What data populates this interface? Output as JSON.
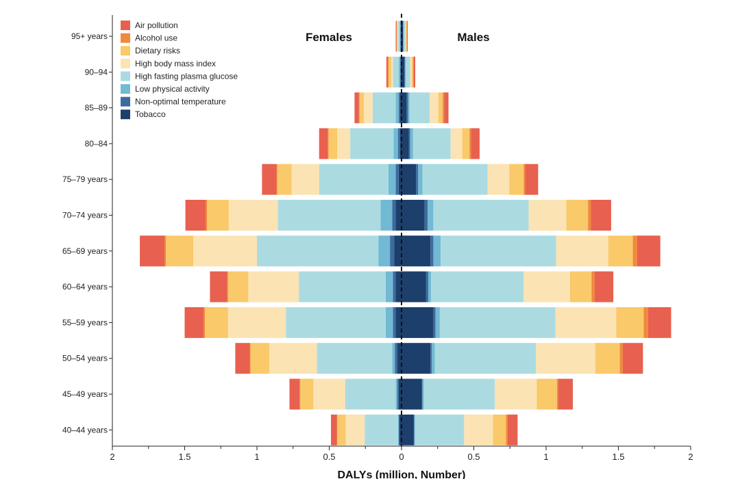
{
  "chart_data": {
    "type": "bar",
    "orientation": "horizontal-stacked-diverging",
    "title": "",
    "xlabel": "DALYs (million, Number)",
    "ylabel": "",
    "xlim": [
      -2,
      2
    ],
    "x_tick_values": [
      -2,
      -1.5,
      -1,
      -0.5,
      0,
      0.5,
      1,
      1.5,
      2
    ],
    "x_tick_labels": [
      "2",
      "1.5",
      "1",
      "0.5",
      "0",
      "0.5",
      "1",
      "1.5",
      "2"
    ],
    "panel_labels": {
      "left": "Females",
      "right": "Males"
    },
    "legend_position": "top-left",
    "categories": [
      "95+ years",
      "90–94",
      "85–89",
      "80–84",
      "75–79 years",
      "70–74 years",
      "65–69 years",
      "60–64 years",
      "55–59 years",
      "50–54 years",
      "45–49 years",
      "40–44 years"
    ],
    "series": [
      {
        "name": "Tobacco",
        "color": "#1d3f6b",
        "females": [
          0.005,
          0.005,
          0.01,
          0.01,
          0.02,
          0.04,
          0.05,
          0.04,
          0.04,
          0.03,
          0.02,
          0.015
        ],
        "males": [
          0.01,
          0.02,
          0.035,
          0.05,
          0.1,
          0.16,
          0.2,
          0.17,
          0.22,
          0.2,
          0.14,
          0.085
        ]
      },
      {
        "name": "Non-optimal temperature",
        "color": "#3c6b9e",
        "females": [
          0.003,
          0.005,
          0.01,
          0.015,
          0.02,
          0.025,
          0.03,
          0.02,
          0.02,
          0.015,
          0.01,
          0.005
        ],
        "males": [
          0.003,
          0.005,
          0.01,
          0.01,
          0.015,
          0.02,
          0.02,
          0.015,
          0.015,
          0.01,
          0.005,
          0.003
        ]
      },
      {
        "name": "Low physical activity",
        "color": "#72b9d3",
        "females": [
          0.005,
          0.01,
          0.02,
          0.03,
          0.05,
          0.08,
          0.08,
          0.05,
          0.05,
          0.02,
          0.01,
          0.005
        ],
        "males": [
          0.003,
          0.005,
          0.01,
          0.02,
          0.03,
          0.04,
          0.05,
          0.02,
          0.03,
          0.02,
          0.01,
          0.005
        ]
      },
      {
        "name": "High fasting plasma glucose",
        "color": "#abdbe1",
        "females": [
          0.01,
          0.04,
          0.16,
          0.3,
          0.48,
          0.71,
          0.84,
          0.6,
          0.69,
          0.52,
          0.35,
          0.23
        ],
        "males": [
          0.01,
          0.03,
          0.14,
          0.26,
          0.45,
          0.66,
          0.8,
          0.64,
          0.8,
          0.7,
          0.49,
          0.34
        ]
      },
      {
        "name": "High body mass index",
        "color": "#fbe3b4",
        "females": [
          0.005,
          0.01,
          0.06,
          0.09,
          0.19,
          0.34,
          0.44,
          0.35,
          0.4,
          0.33,
          0.22,
          0.13
        ],
        "males": [
          0.005,
          0.01,
          0.06,
          0.08,
          0.15,
          0.26,
          0.36,
          0.32,
          0.42,
          0.41,
          0.29,
          0.2
        ]
      },
      {
        "name": "Dietary risks",
        "color": "#f9c96a",
        "females": [
          0.005,
          0.02,
          0.03,
          0.06,
          0.1,
          0.15,
          0.19,
          0.14,
          0.16,
          0.13,
          0.09,
          0.06
        ],
        "males": [
          0.005,
          0.01,
          0.03,
          0.05,
          0.1,
          0.15,
          0.17,
          0.15,
          0.19,
          0.17,
          0.14,
          0.09
        ]
      },
      {
        "name": "Alcohol use",
        "color": "#ef8a3c",
        "females": [
          0.002,
          0.005,
          0.005,
          0.005,
          0.005,
          0.01,
          0.01,
          0.005,
          0.01,
          0.005,
          0.005,
          0.003
        ],
        "males": [
          0.002,
          0.005,
          0.01,
          0.01,
          0.01,
          0.02,
          0.03,
          0.02,
          0.03,
          0.02,
          0.01,
          0.01
        ]
      },
      {
        "name": "Air pollution",
        "color": "#e8604f",
        "females": [
          0.005,
          0.01,
          0.03,
          0.06,
          0.1,
          0.14,
          0.17,
          0.12,
          0.13,
          0.1,
          0.07,
          0.04
        ],
        "males": [
          0.005,
          0.01,
          0.03,
          0.06,
          0.09,
          0.14,
          0.16,
          0.13,
          0.16,
          0.14,
          0.1,
          0.07
        ]
      }
    ],
    "legend_order": [
      "Air pollution",
      "Alcohol use",
      "Dietary risks",
      "High body mass index",
      "High fasting plasma glucose",
      "Low physical activity",
      "Non-optimal temperature",
      "Tobacco"
    ]
  }
}
